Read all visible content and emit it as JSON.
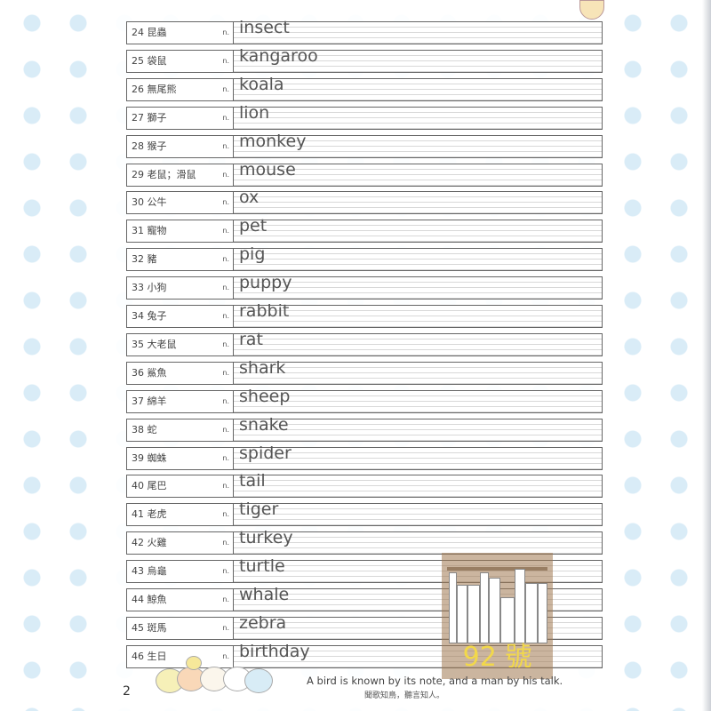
{
  "vocabulary": [
    {
      "num": "24",
      "zh": "昆蟲",
      "pos": "n.",
      "en": "insect"
    },
    {
      "num": "25",
      "zh": "袋鼠",
      "pos": "n.",
      "en": "kangaroo"
    },
    {
      "num": "26",
      "zh": "無尾熊",
      "pos": "n.",
      "en": "koala"
    },
    {
      "num": "27",
      "zh": "獅子",
      "pos": "n.",
      "en": "lion"
    },
    {
      "num": "28",
      "zh": "猴子",
      "pos": "n.",
      "en": "monkey"
    },
    {
      "num": "29",
      "zh": "老鼠；滑鼠",
      "pos": "n.",
      "en": "mouse"
    },
    {
      "num": "30",
      "zh": "公牛",
      "pos": "n.",
      "en": "ox"
    },
    {
      "num": "31",
      "zh": "寵物",
      "pos": "n.",
      "en": "pet"
    },
    {
      "num": "32",
      "zh": "豬",
      "pos": "n.",
      "en": "pig"
    },
    {
      "num": "33",
      "zh": "小狗",
      "pos": "n.",
      "en": "puppy"
    },
    {
      "num": "34",
      "zh": "兔子",
      "pos": "n.",
      "en": "rabbit"
    },
    {
      "num": "35",
      "zh": "大老鼠",
      "pos": "n.",
      "en": "rat"
    },
    {
      "num": "36",
      "zh": "鯊魚",
      "pos": "n.",
      "en": "shark"
    },
    {
      "num": "37",
      "zh": "綿羊",
      "pos": "n.",
      "en": "sheep"
    },
    {
      "num": "38",
      "zh": "蛇",
      "pos": "n.",
      "en": "snake"
    },
    {
      "num": "39",
      "zh": "蜘蛛",
      "pos": "n.",
      "en": "spider"
    },
    {
      "num": "40",
      "zh": "尾巴",
      "pos": "n.",
      "en": "tail"
    },
    {
      "num": "41",
      "zh": "老虎",
      "pos": "n.",
      "en": "tiger"
    },
    {
      "num": "42",
      "zh": "火雞",
      "pos": "n.",
      "en": "turkey"
    },
    {
      "num": "43",
      "zh": "烏龜",
      "pos": "n.",
      "en": "turtle"
    },
    {
      "num": "44",
      "zh": "鯨魚",
      "pos": "n.",
      "en": "whale"
    },
    {
      "num": "45",
      "zh": "斑馬",
      "pos": "n.",
      "en": "zebra"
    },
    {
      "num": "46",
      "zh": "生日",
      "pos": "n.",
      "en": "birthday"
    }
  ],
  "footer": {
    "page_number": "2",
    "quote": "A bird is known by its note, and a man by his talk.",
    "quote_zh": "聞歌知鳥，聽言知人。"
  },
  "watermark": {
    "text": "92 號"
  }
}
